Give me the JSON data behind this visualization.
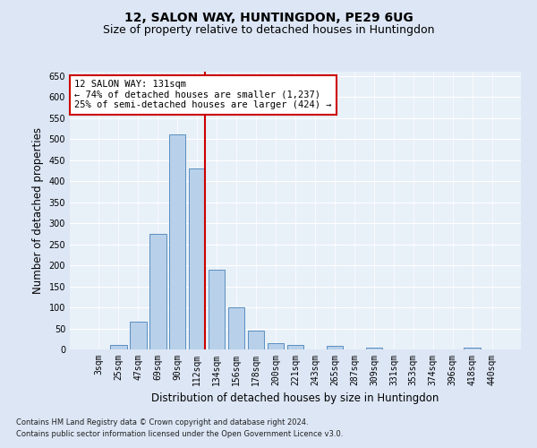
{
  "title": "12, SALON WAY, HUNTINGDON, PE29 6UG",
  "subtitle": "Size of property relative to detached houses in Huntingdon",
  "xlabel": "Distribution of detached houses by size in Huntingdon",
  "ylabel": "Number of detached properties",
  "footnote1": "Contains HM Land Registry data © Crown copyright and database right 2024.",
  "footnote2": "Contains public sector information licensed under the Open Government Licence v3.0.",
  "categories": [
    "3sqm",
    "25sqm",
    "47sqm",
    "69sqm",
    "90sqm",
    "112sqm",
    "134sqm",
    "156sqm",
    "178sqm",
    "200sqm",
    "221sqm",
    "243sqm",
    "265sqm",
    "287sqm",
    "309sqm",
    "331sqm",
    "353sqm",
    "374sqm",
    "396sqm",
    "418sqm",
    "440sqm"
  ],
  "values": [
    0,
    10,
    65,
    275,
    510,
    430,
    190,
    100,
    45,
    15,
    10,
    0,
    8,
    0,
    5,
    0,
    0,
    0,
    0,
    5,
    0
  ],
  "bar_color": "#b8d0ea",
  "bar_edge_color": "#5a8fc0",
  "vline_color": "#cc0000",
  "annotation_text": "12 SALON WAY: 131sqm\n← 74% of detached houses are smaller (1,237)\n25% of semi-detached houses are larger (424) →",
  "annotation_box_color": "#ffffff",
  "annotation_box_edge": "#cc0000",
  "ylim": [
    0,
    660
  ],
  "yticks": [
    0,
    50,
    100,
    150,
    200,
    250,
    300,
    350,
    400,
    450,
    500,
    550,
    600,
    650
  ],
  "bg_color": "#dce6f5",
  "plot_bg": "#e8f0f8",
  "grid_color": "#ffffff",
  "title_fontsize": 10,
  "subtitle_fontsize": 9,
  "axis_label_fontsize": 8.5,
  "tick_fontsize": 7,
  "annotation_fontsize": 7.5,
  "footnote_fontsize": 6
}
